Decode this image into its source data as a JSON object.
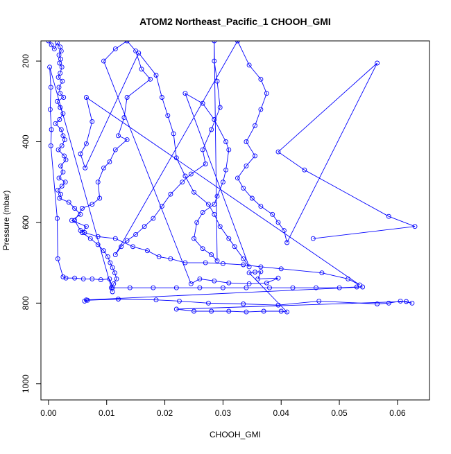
{
  "chart_data": {
    "type": "line",
    "title": "ATOM2 Northeast_Pacific_1 CHOOH_GMI",
    "xlabel": "CHOOH_GMI",
    "ylabel": "Pressure (mbar)",
    "xlim": [
      -0.0013,
      0.0655
    ],
    "ylim": [
      1040,
      150
    ],
    "y_reversed": true,
    "grid": false,
    "x_ticks": [
      0.0,
      0.01,
      0.02,
      0.03,
      0.04,
      0.05,
      0.06
    ],
    "x_tick_labels": [
      "0.00",
      "0.01",
      "0.02",
      "0.03",
      "0.04",
      "0.05",
      "0.06"
    ],
    "y_ticks": [
      200,
      400,
      600,
      800,
      1000
    ],
    "y_tick_labels": [
      "200",
      "400",
      "600",
      "800",
      "1000"
    ],
    "colors": {
      "series": "#0000ff",
      "axis": "#000000",
      "background": "#ffffff"
    },
    "series": [
      {
        "marker": "open-circle",
        "points": [
          [
            0.0,
            150
          ],
          [
            0.0005,
            160
          ],
          [
            0.001,
            170
          ],
          [
            0.0015,
            155
          ],
          [
            0.002,
            165
          ],
          [
            0.0022,
            175
          ],
          [
            0.0018,
            185
          ],
          [
            0.0021,
            195
          ],
          [
            0.0019,
            205
          ],
          [
            0.0023,
            215
          ],
          [
            0.002,
            230
          ],
          [
            0.0017,
            240
          ],
          [
            0.0024,
            250
          ],
          [
            0.0018,
            265
          ],
          [
            0.002,
            280
          ],
          [
            0.0026,
            290
          ],
          [
            0.0015,
            300
          ],
          [
            0.002,
            315
          ],
          [
            0.0025,
            330
          ],
          [
            0.0019,
            345
          ],
          [
            0.0012,
            355
          ],
          [
            0.0022,
            370
          ],
          [
            0.0025,
            385
          ],
          [
            0.0028,
            395
          ],
          [
            0.0023,
            410
          ],
          [
            0.0017,
            420
          ],
          [
            0.0027,
            435
          ],
          [
            0.003,
            445
          ],
          [
            0.0021,
            460
          ],
          [
            0.0025,
            475
          ],
          [
            0.0018,
            490
          ],
          [
            0.0029,
            500
          ],
          [
            0.0023,
            510
          ],
          [
            0.0016,
            520
          ],
          [
            0.0021,
            530
          ],
          [
            0.0019,
            540
          ],
          [
            0.0035,
            550
          ],
          [
            0.0045,
            565
          ],
          [
            0.0055,
            580
          ],
          [
            0.004,
            595
          ],
          [
            0.0065,
            610
          ],
          [
            0.0058,
            625
          ],
          [
            0.0072,
            640
          ],
          [
            0.0085,
            655
          ],
          [
            0.0095,
            670
          ],
          [
            0.0102,
            685
          ],
          [
            0.0106,
            700
          ],
          [
            0.011,
            712
          ],
          [
            0.0114,
            725
          ],
          [
            0.0117,
            740
          ],
          [
            0.0112,
            752
          ],
          [
            0.0108,
            762
          ],
          [
            0.011,
            772
          ],
          [
            0.0002,
            215
          ],
          [
            0.0004,
            265
          ],
          [
            0.0003,
            320
          ],
          [
            0.0005,
            370
          ],
          [
            0.0004,
            410
          ],
          [
            0.0015,
            590
          ],
          [
            0.0016,
            690
          ],
          [
            0.0025,
            735
          ],
          [
            0.003,
            738
          ],
          [
            0.0045,
            738
          ],
          [
            0.006,
            740
          ],
          [
            0.0075,
            740
          ],
          [
            0.009,
            742
          ],
          [
            0.0105,
            740
          ],
          [
            0.011,
            762
          ],
          [
            0.014,
            762
          ],
          [
            0.018,
            762
          ],
          [
            0.022,
            762
          ],
          [
            0.026,
            762
          ],
          [
            0.03,
            762
          ],
          [
            0.034,
            762
          ],
          [
            0.038,
            762
          ],
          [
            0.042,
            762
          ],
          [
            0.046,
            762
          ],
          [
            0.05,
            762
          ],
          [
            0.053,
            760
          ],
          [
            0.054,
            760
          ],
          [
            0.0065,
            792
          ],
          [
            0.0062,
            795
          ],
          [
            0.0067,
            793
          ],
          [
            0.012,
            790
          ],
          [
            0.0185,
            792
          ],
          [
            0.0225,
            795
          ],
          [
            0.0275,
            800
          ],
          [
            0.0335,
            802
          ],
          [
            0.0395,
            805
          ],
          [
            0.0465,
            795
          ],
          [
            0.0565,
            802
          ],
          [
            0.0585,
            800
          ],
          [
            0.0605,
            795
          ],
          [
            0.0625,
            800
          ],
          [
            0.0615,
            796
          ],
          [
            0.022,
            815
          ],
          [
            0.025,
            820
          ],
          [
            0.028,
            820
          ],
          [
            0.031,
            820
          ],
          [
            0.034,
            822
          ],
          [
            0.037,
            820
          ],
          [
            0.04,
            820
          ],
          [
            0.041,
            822
          ],
          [
            0.0345,
            725
          ],
          [
            0.0355,
            723
          ],
          [
            0.0365,
            722
          ],
          [
            0.036,
            740
          ],
          [
            0.0395,
            738
          ],
          [
            0.0375,
            750
          ],
          [
            0.0345,
            752
          ],
          [
            0.031,
            750
          ],
          [
            0.0285,
            745
          ],
          [
            0.026,
            740
          ],
          [
            0.0245,
            752
          ],
          [
            0.0095,
            200
          ],
          [
            0.0115,
            170
          ],
          [
            0.0135,
            150
          ],
          [
            0.015,
            175
          ],
          [
            0.016,
            220
          ],
          [
            0.0175,
            245
          ],
          [
            0.0135,
            290
          ],
          [
            0.013,
            340
          ],
          [
            0.012,
            385
          ],
          [
            0.0135,
            395
          ],
          [
            0.0115,
            420
          ],
          [
            0.0105,
            450
          ],
          [
            0.0095,
            465
          ],
          [
            0.0085,
            500
          ],
          [
            0.0088,
            540
          ],
          [
            0.0075,
            555
          ],
          [
            0.0058,
            565
          ],
          [
            0.0045,
            595
          ],
          [
            0.0055,
            620
          ],
          [
            0.0062,
            625
          ],
          [
            0.0085,
            635
          ],
          [
            0.0115,
            640
          ],
          [
            0.0145,
            660
          ],
          [
            0.017,
            670
          ],
          [
            0.019,
            685
          ],
          [
            0.021,
            690
          ],
          [
            0.0235,
            700
          ],
          [
            0.027,
            700
          ],
          [
            0.03,
            702
          ],
          [
            0.0335,
            705
          ],
          [
            0.0365,
            710
          ],
          [
            0.04,
            715
          ],
          [
            0.047,
            725
          ],
          [
            0.0515,
            740
          ],
          [
            0.0535,
            755
          ],
          [
            0.0065,
            290
          ],
          [
            0.0075,
            350
          ],
          [
            0.0065,
            405
          ],
          [
            0.0055,
            430
          ],
          [
            0.0063,
            465
          ],
          [
            0.0155,
            180
          ],
          [
            0.0185,
            235
          ],
          [
            0.0195,
            290
          ],
          [
            0.0205,
            335
          ],
          [
            0.0215,
            380
          ],
          [
            0.022,
            440
          ],
          [
            0.0235,
            485
          ],
          [
            0.025,
            525
          ],
          [
            0.0275,
            555
          ],
          [
            0.0285,
            580
          ],
          [
            0.0295,
            610
          ],
          [
            0.031,
            640
          ],
          [
            0.032,
            660
          ],
          [
            0.0335,
            690
          ],
          [
            0.0345,
            710
          ],
          [
            0.0235,
            280
          ],
          [
            0.0265,
            305
          ],
          [
            0.0285,
            345
          ],
          [
            0.0305,
            400
          ],
          [
            0.031,
            420
          ],
          [
            0.0305,
            470
          ],
          [
            0.03,
            500
          ],
          [
            0.029,
            535
          ],
          [
            0.0285,
            555
          ],
          [
            0.0265,
            575
          ],
          [
            0.0255,
            600
          ],
          [
            0.025,
            640
          ],
          [
            0.0265,
            665
          ],
          [
            0.028,
            680
          ],
          [
            0.029,
            695
          ],
          [
            0.0285,
            150
          ],
          [
            0.0285,
            200
          ],
          [
            0.029,
            250
          ],
          [
            0.0295,
            315
          ],
          [
            0.028,
            370
          ],
          [
            0.0265,
            420
          ],
          [
            0.027,
            455
          ],
          [
            0.0245,
            480
          ],
          [
            0.023,
            500
          ],
          [
            0.021,
            530
          ],
          [
            0.0195,
            560
          ],
          [
            0.018,
            590
          ],
          [
            0.0165,
            610
          ],
          [
            0.015,
            630
          ],
          [
            0.0135,
            645
          ],
          [
            0.0125,
            660
          ],
          [
            0.0115,
            680
          ],
          [
            0.0325,
            150
          ],
          [
            0.0345,
            210
          ],
          [
            0.0365,
            245
          ],
          [
            0.0375,
            280
          ],
          [
            0.0365,
            320
          ],
          [
            0.0355,
            360
          ],
          [
            0.034,
            400
          ],
          [
            0.0355,
            435
          ],
          [
            0.034,
            460
          ],
          [
            0.0325,
            490
          ],
          [
            0.0335,
            515
          ],
          [
            0.035,
            540
          ],
          [
            0.0365,
            560
          ],
          [
            0.0385,
            580
          ],
          [
            0.0395,
            600
          ],
          [
            0.0405,
            620
          ],
          [
            0.041,
            650
          ],
          [
            0.0565,
            205
          ],
          [
            0.0395,
            425
          ],
          [
            0.044,
            470
          ],
          [
            0.0585,
            585
          ],
          [
            0.063,
            610
          ],
          [
            0.0455,
            640
          ]
        ]
      }
    ]
  }
}
